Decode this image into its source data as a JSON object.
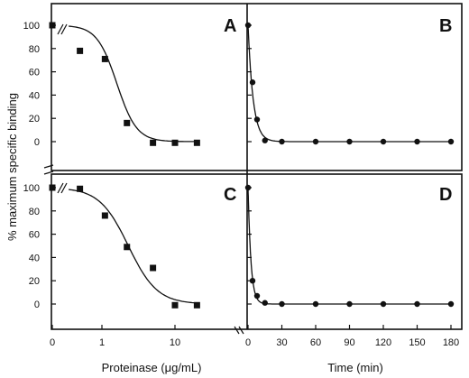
{
  "figure": {
    "ylabel": "% maximum specific binding",
    "xlabel_left": "Proteinase (μg/mL)",
    "xlabel_right": "Time (min)"
  },
  "chart_data": [
    {
      "panel": "A",
      "type": "scatter",
      "x_scale": "log",
      "x_ticks": [
        "0",
        "1",
        "10"
      ],
      "y_ticks": [
        "0",
        "20",
        "40",
        "60",
        "80",
        "100"
      ],
      "ylim": [
        -10,
        110
      ],
      "points": [
        {
          "x": 0,
          "y": 100
        },
        {
          "x": 0.5,
          "y": 78
        },
        {
          "x": 1.1,
          "y": 71
        },
        {
          "x": 2.2,
          "y": 16
        },
        {
          "x": 5.0,
          "y": -1
        },
        {
          "x": 10,
          "y": -1
        },
        {
          "x": 20,
          "y": -1
        }
      ],
      "marker": "square",
      "fit_curve": true
    },
    {
      "panel": "B",
      "type": "scatter",
      "x_scale": "linear",
      "xlim": [
        0,
        180
      ],
      "ylim": [
        -10,
        110
      ],
      "points": [
        {
          "x": 0,
          "y": 100
        },
        {
          "x": 4,
          "y": 51
        },
        {
          "x": 8,
          "y": 19
        },
        {
          "x": 15,
          "y": 1
        },
        {
          "x": 30,
          "y": 0
        },
        {
          "x": 60,
          "y": 0
        },
        {
          "x": 90,
          "y": 0
        },
        {
          "x": 120,
          "y": 0
        },
        {
          "x": 150,
          "y": 0
        },
        {
          "x": 180,
          "y": 0
        }
      ],
      "marker": "circle",
      "fit_curve": true
    },
    {
      "panel": "C",
      "type": "scatter",
      "x_scale": "log",
      "x_ticks": [
        "0",
        "1",
        "10"
      ],
      "y_ticks": [
        "0",
        "20",
        "40",
        "60",
        "80",
        "100"
      ],
      "ylim": [
        -10,
        110
      ],
      "points": [
        {
          "x": 0,
          "y": 100
        },
        {
          "x": 0.5,
          "y": 99
        },
        {
          "x": 1.1,
          "y": 76
        },
        {
          "x": 2.2,
          "y": 49
        },
        {
          "x": 5.0,
          "y": 31
        },
        {
          "x": 10,
          "y": -1
        },
        {
          "x": 20,
          "y": -1
        }
      ],
      "marker": "square",
      "fit_curve": true
    },
    {
      "panel": "D",
      "type": "scatter",
      "x_scale": "linear",
      "xlim": [
        0,
        180
      ],
      "x_ticks": [
        "0",
        "30",
        "60",
        "90",
        "120",
        "150",
        "180"
      ],
      "ylim": [
        -10,
        110
      ],
      "points": [
        {
          "x": 0,
          "y": 100
        },
        {
          "x": 4,
          "y": 20
        },
        {
          "x": 8,
          "y": 7
        },
        {
          "x": 15,
          "y": 1
        },
        {
          "x": 30,
          "y": 0
        },
        {
          "x": 60,
          "y": 0
        },
        {
          "x": 90,
          "y": 0
        },
        {
          "x": 120,
          "y": 0
        },
        {
          "x": 150,
          "y": 0
        },
        {
          "x": 180,
          "y": 0
        }
      ],
      "marker": "circle",
      "fit_curve": true
    }
  ]
}
